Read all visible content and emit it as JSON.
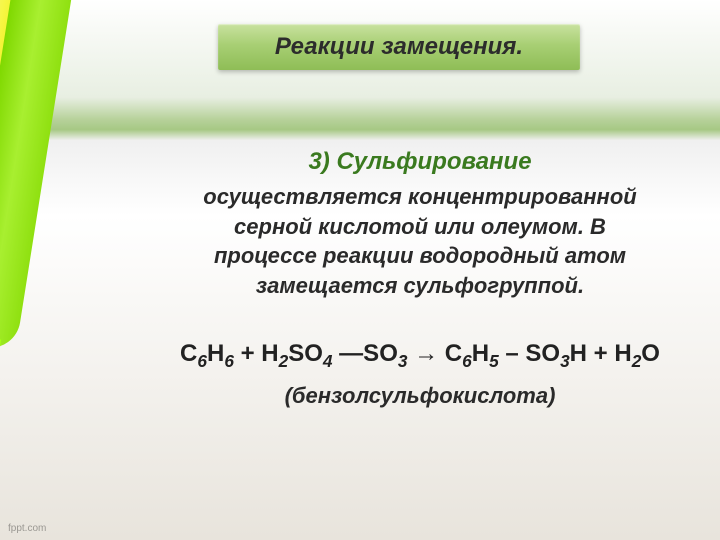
{
  "title": "Реакции замещения.",
  "section": {
    "heading": "3) Сульфирование",
    "body": "осуществляется концентрированной серной кислотой или олеумом. В процессе реакции водородный  атом замещается сульфогруппой."
  },
  "equation": {
    "line1_html": "С<sub>6</sub>Н<sub>6</sub> + Н<sub>2</sub>SO<sub>4</sub> —SO<sub>3</sub> → С<sub>6</sub>Н<sub>5</sub> – SO<sub>3</sub>H + Н<sub>2</sub>О",
    "product_name": "(бензолсульфокислота)"
  },
  "watermark": "fppt.com",
  "colors": {
    "title_banner_gradient": [
      "#c9e29f",
      "#a8cf74",
      "#8fbd56"
    ],
    "heading_color": "#3a7a1f",
    "body_color": "#2a2a2a",
    "highlighters": [
      "#ff1e77",
      "#ff5a20",
      "#ffa020",
      "#f2f238",
      "#9be024"
    ]
  },
  "typography": {
    "title_fontsize": 24,
    "heading_fontsize": 24,
    "body_fontsize": 22,
    "equation_fontsize": 24,
    "italic": true,
    "bold": true
  }
}
